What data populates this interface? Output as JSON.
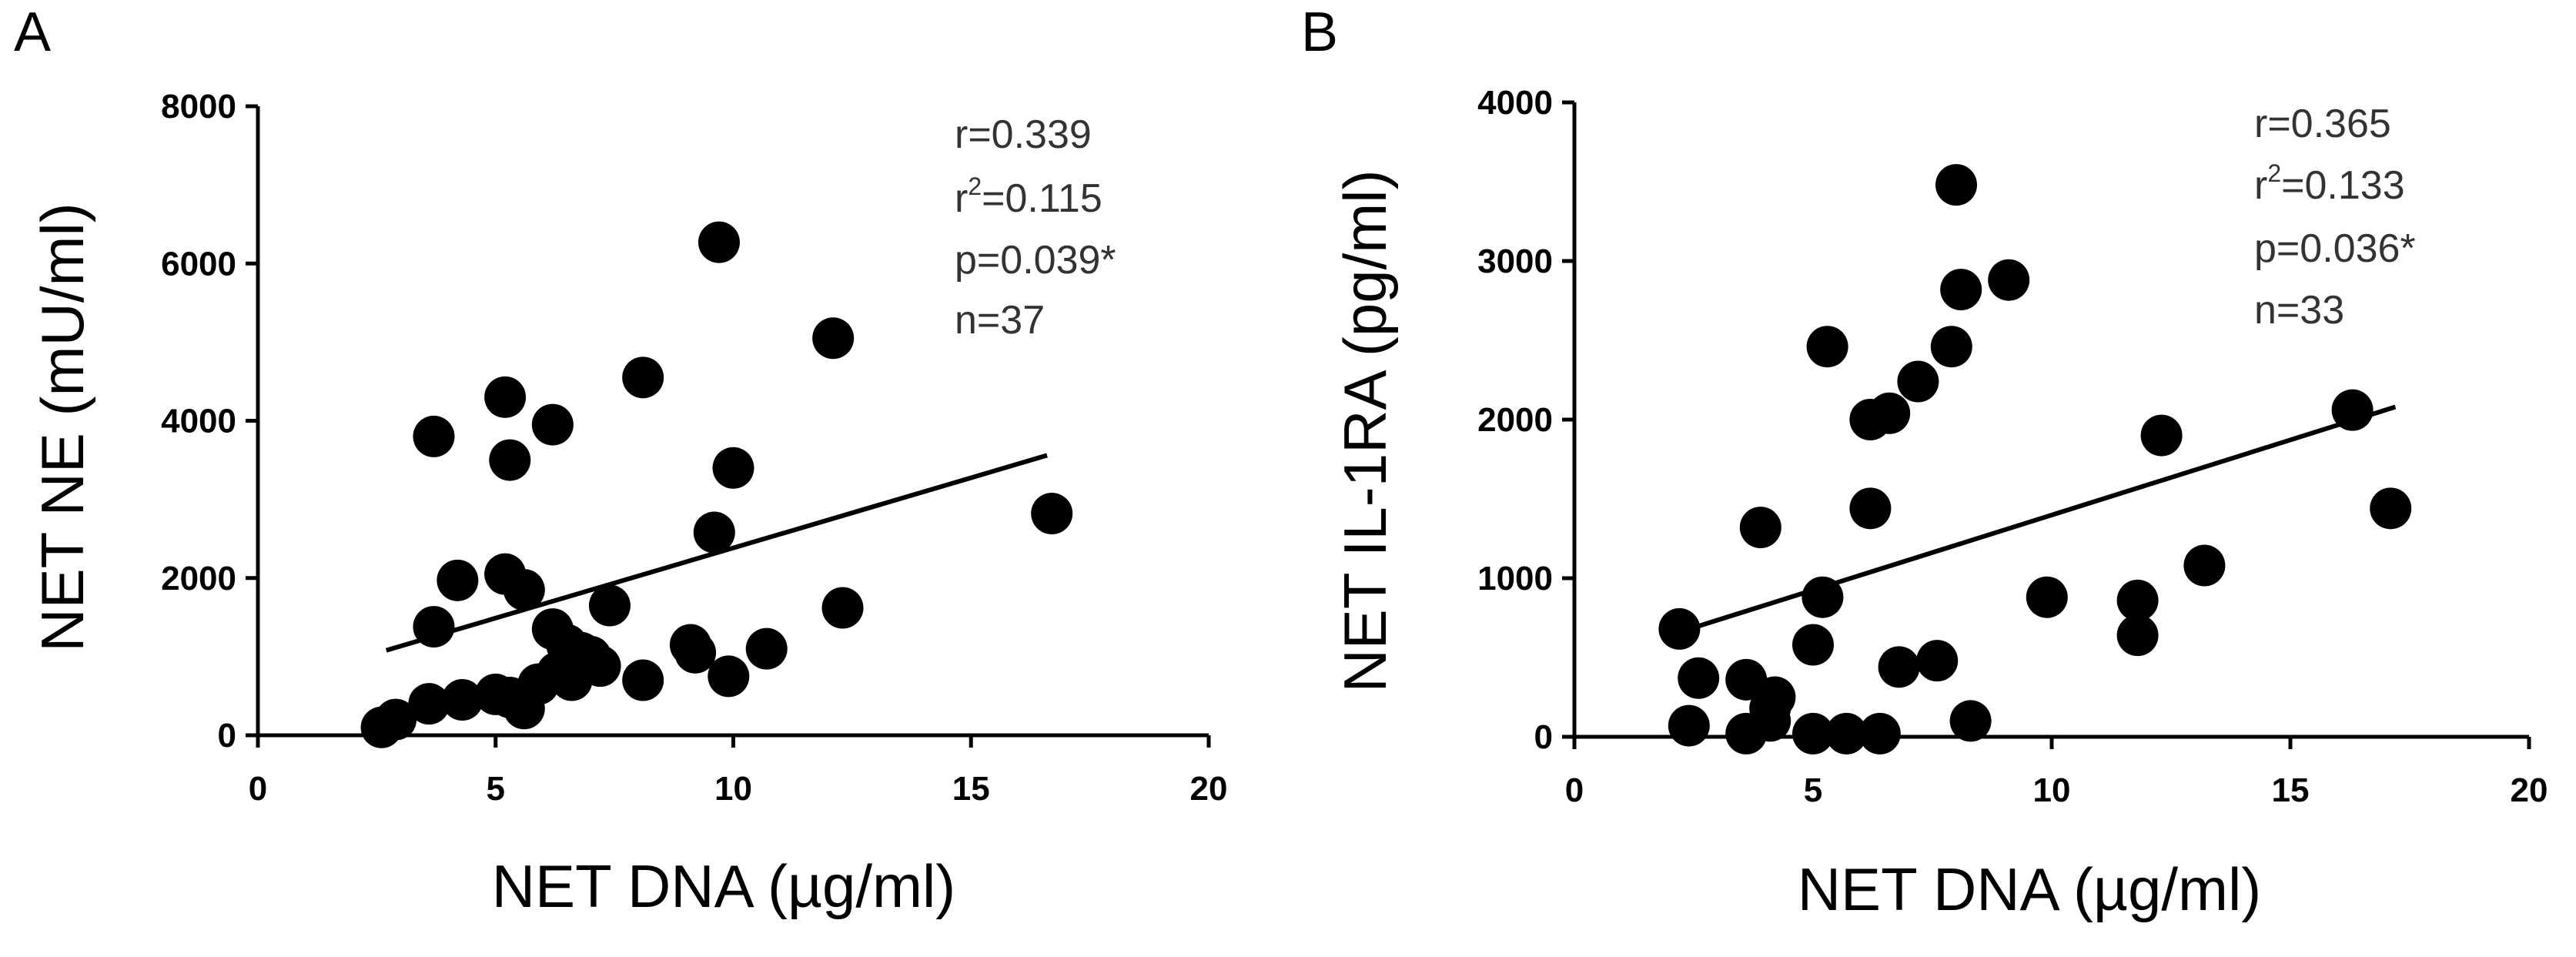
{
  "chart_data": [
    {
      "type": "scatter",
      "panel": "A",
      "xlabel": "NET DNA (µg/ml)",
      "ylabel": "NET NE (mU/ml)",
      "xlim": [
        0,
        20
      ],
      "ylim": [
        0,
        8000
      ],
      "xticks": [
        "0",
        "5",
        "10",
        "15",
        "20"
      ],
      "yticks": [
        "0",
        "2000",
        "4000",
        "6000",
        "8000"
      ],
      "stats": {
        "r": "r=0.339",
        "r2_prefix": "r",
        "r2_sup": "2",
        "r2_value": "=0.115",
        "p": "p=0.039*",
        "n": "n=37"
      },
      "fit_line": {
        "x": [
          2.7,
          16.6
        ],
        "y": [
          1080,
          3560
        ]
      },
      "points": {
        "x": [
          2.6,
          2.9,
          3.6,
          4.3,
          5.0,
          5.3,
          5.6,
          5.9,
          6.3,
          6.8,
          7.2,
          8.1,
          9.2,
          9.9,
          10.7,
          3.7,
          4.2,
          5.2,
          5.6,
          6.2,
          6.5,
          7.0,
          7.4,
          9.1,
          9.6,
          10.0,
          12.3,
          16.7,
          3.7,
          5.3,
          6.2,
          8.1,
          9.7,
          12.1,
          5.2,
          6.6,
          6.8
        ],
        "y": [
          100,
          200,
          400,
          450,
          520,
          480,
          340,
          650,
          800,
          900,
          880,
          700,
          1050,
          750,
          1100,
          1380,
          1970,
          2050,
          1850,
          1350,
          1150,
          1000,
          1650,
          1150,
          2580,
          3400,
          1620,
          2820,
          3800,
          3500,
          3950,
          4550,
          6270,
          5050,
          4300,
          700,
          1050
        ]
      }
    },
    {
      "type": "scatter",
      "panel": "B",
      "xlabel": "NET DNA (µg/ml)",
      "ylabel": "NET IL-1RA (pg/ml)",
      "xlim": [
        0,
        20
      ],
      "ylim": [
        0,
        4000
      ],
      "xticks": [
        "0",
        "5",
        "10",
        "15",
        "20"
      ],
      "yticks": [
        "0",
        "1000",
        "2000",
        "3000",
        "4000"
      ],
      "stats": {
        "r": "r=0.365",
        "r2_prefix": "r",
        "r2_sup": "2",
        "r2_value": "=0.133",
        "p": "p=0.036*",
        "n": "n=33"
      },
      "fit_line": {
        "x": [
          2.2,
          17.2
        ],
        "y": [
          660,
          2080
        ]
      },
      "points": {
        "x": [
          2.2,
          2.4,
          2.6,
          3.6,
          3.6,
          4.2,
          4.1,
          5.0,
          5.0,
          5.2,
          5.7,
          6.4,
          6.8,
          7.6,
          8.3,
          3.9,
          5.3,
          6.2,
          6.6,
          7.2,
          7.9,
          8.1,
          9.1,
          6.2,
          8.0,
          9.9,
          11.8,
          11.8,
          12.3,
          13.2,
          16.3,
          17.1,
          4.1
        ],
        "y": [
          680,
          70,
          370,
          360,
          20,
          250,
          100,
          20,
          580,
          880,
          20,
          20,
          440,
          480,
          100,
          1320,
          2460,
          2000,
          2040,
          2240,
          2460,
          2820,
          2880,
          1440,
          3480,
          880,
          860,
          640,
          1900,
          1080,
          2060,
          1440,
          180
        ]
      }
    }
  ]
}
